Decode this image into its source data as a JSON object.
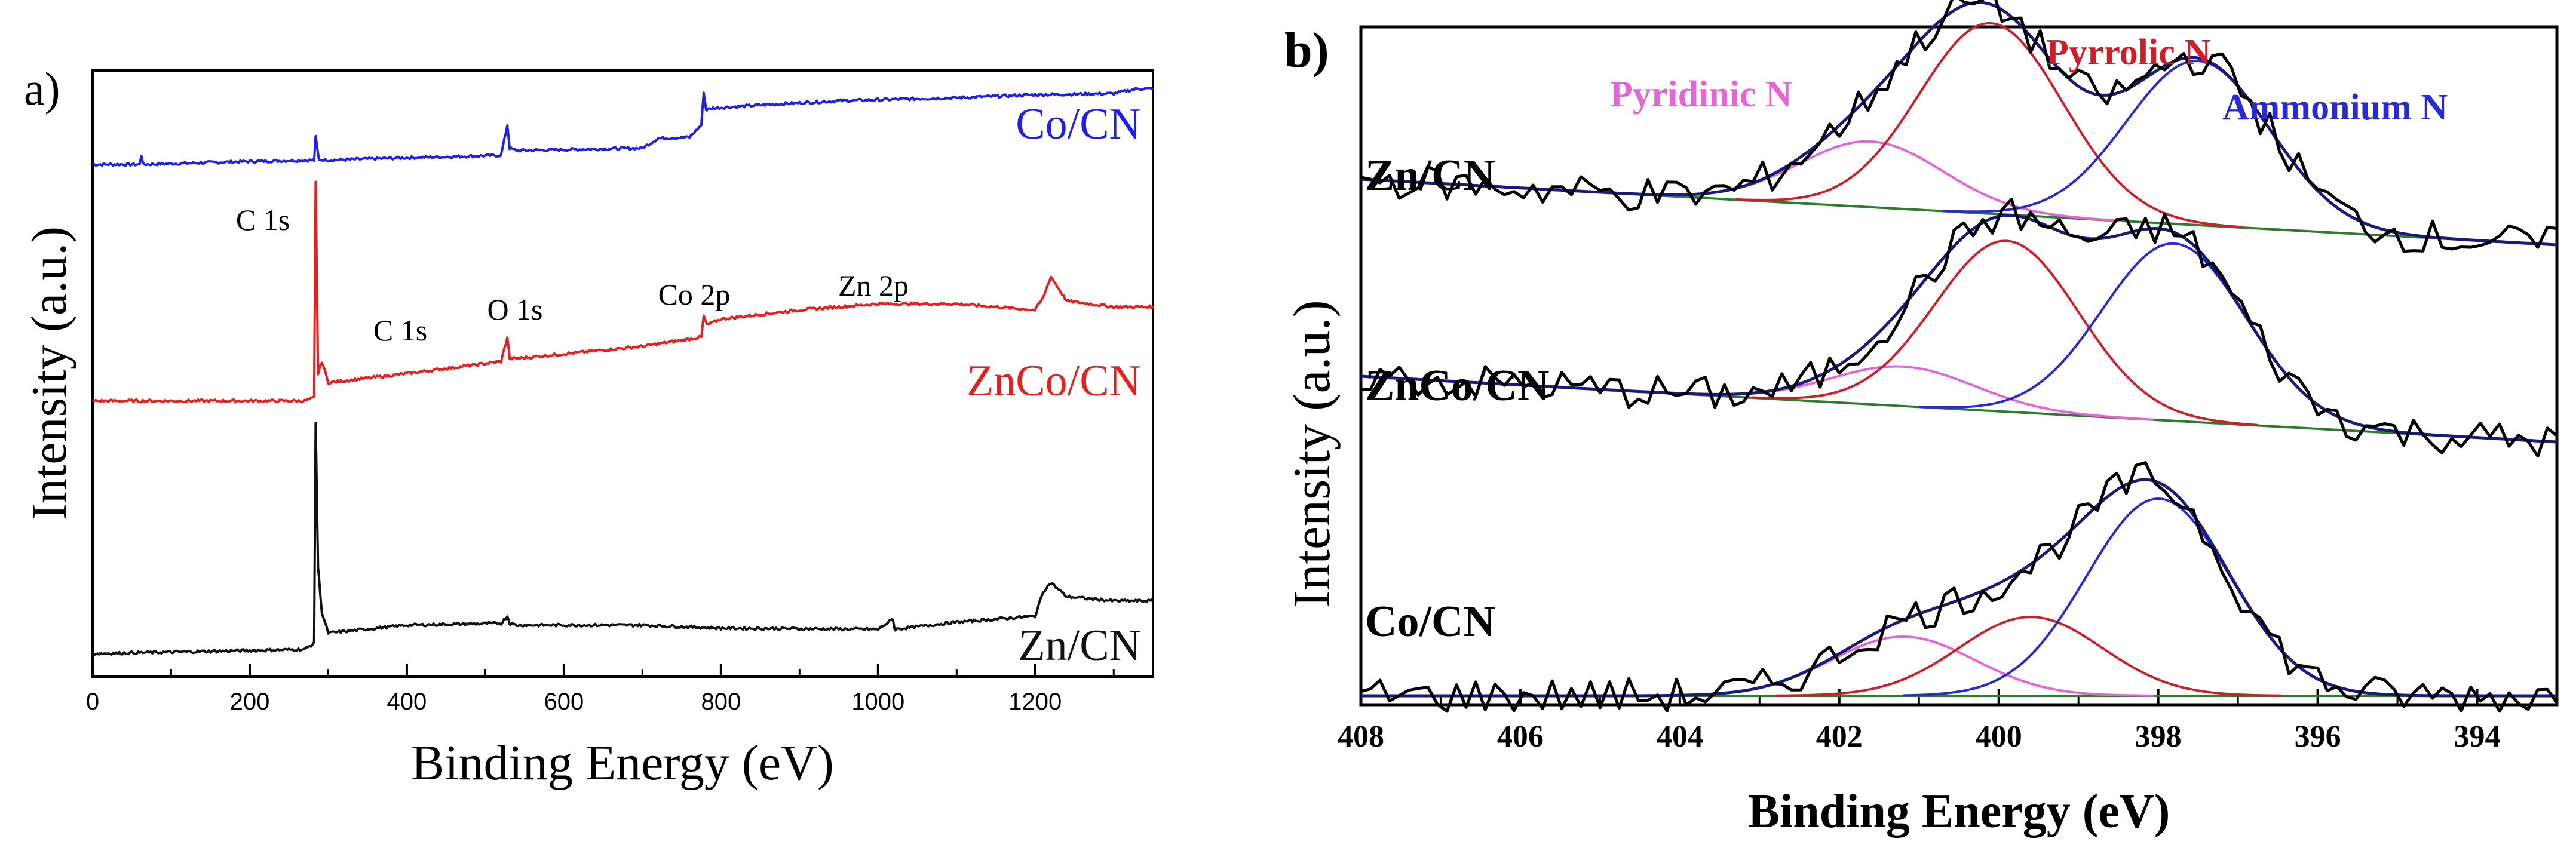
{
  "chart_data": [
    {
      "panel_label": "a)",
      "type": "line",
      "xlabel": "Binding Energy (eV)",
      "ylabel": "Intensity (a.u.)",
      "xlim": [
        0,
        1350
      ],
      "ylim": [
        0,
        100
      ],
      "xticks": [
        "0",
        "200",
        "400",
        "600",
        "800",
        "1000",
        "1200"
      ],
      "xtick_values": [
        0,
        200,
        400,
        600,
        800,
        1000,
        1200
      ],
      "annotations": [
        {
          "text": "C 1s",
          "x": 285,
          "y": 80
        },
        {
          "text": "C 1s",
          "x": 395,
          "y": 58
        },
        {
          "text": "O 1s",
          "x": 530,
          "y": 61
        },
        {
          "text": "Co 2p",
          "x": 760,
          "y": 64
        },
        {
          "text": "Zn 2p",
          "x": 965,
          "y": 65
        }
      ],
      "series": [
        {
          "name": "Co/CN",
          "color": "#1f1fe6",
          "x": [
            0,
            60,
            62,
            65,
            200,
            282,
            284,
            288,
            300,
            400,
            520,
            528,
            531,
            540,
            700,
            720,
            760,
            775,
            778,
            781,
            790,
            850,
            950,
            1100,
            1200,
            1300,
            1330,
            1350
          ],
          "y": [
            84.5,
            84.5,
            86,
            84.5,
            85,
            85.2,
            89,
            85.3,
            85.2,
            85.6,
            86,
            91,
            87.2,
            86.8,
            87.2,
            88.8,
            89,
            91,
            96.5,
            93.5,
            93.8,
            94.3,
            95,
            95.5,
            96,
            96.2,
            97,
            97
          ]
        },
        {
          "name": "ZnCo/CN",
          "color": "#e61f1f",
          "x": [
            0,
            270,
            282,
            284,
            287,
            292,
            300,
            400,
            520,
            528,
            531,
            540,
            700,
            775,
            778,
            782,
            800,
            900,
            1000,
            1100,
            1200,
            1210,
            1220,
            1240,
            1300,
            1350
          ],
          "y": [
            45.5,
            45.5,
            46,
            81.5,
            50,
            52,
            48.5,
            50,
            52,
            56,
            52.5,
            52.5,
            54.5,
            56,
            59.5,
            58,
            59,
            60.5,
            61.5,
            61.5,
            60.5,
            62.5,
            66,
            62,
            61,
            61
          ]
        },
        {
          "name": "Zn/CN",
          "color": "#111111",
          "x": [
            0,
            270,
            282,
            284,
            287,
            292,
            300,
            400,
            520,
            528,
            531,
            540,
            700,
            800,
            1000,
            1019,
            1021,
            1100,
            1200,
            1210,
            1220,
            1240,
            1300,
            1350
          ],
          "y": [
            3.8,
            4.5,
            5.5,
            42,
            18,
            10.5,
            7.2,
            8.5,
            8.8,
            10,
            8.8,
            8.5,
            8.5,
            8,
            7.8,
            9.5,
            7.8,
            9,
            10,
            14,
            15.5,
            13.2,
            12.5,
            12.5
          ]
        }
      ]
    },
    {
      "panel_label": "b)",
      "type": "line",
      "xlabel": "Binding Energy (eV)",
      "ylabel": "Intensity (a.u.)",
      "xlim": [
        408,
        393
      ],
      "xticks": [
        "408",
        "406",
        "404",
        "402",
        "400",
        "398",
        "396",
        "394"
      ],
      "xtick_values": [
        408,
        406,
        404,
        402,
        400,
        398,
        396,
        394
      ],
      "components": [
        {
          "name": "Pyridinic N",
          "color": "#e466d6"
        },
        {
          "name": "Pyrrolic N",
          "color": "#cc1f2a"
        },
        {
          "name": "Ammonium N",
          "color": "#2a2ad1"
        }
      ],
      "series": [
        {
          "name": "Zn/CN",
          "baseline": [
            10,
            0
          ],
          "peaks": [
            {
              "component": "Pyridinic N",
              "center": 401.6,
              "height": 10
            },
            {
              "component": "Pyrrolic N",
              "center": 400.1,
              "height": 29
            },
            {
              "component": "Ammonium N",
              "center": 397.5,
              "height": 25
            }
          ]
        },
        {
          "name": "ZnCo/CN",
          "baseline": [
            10,
            0
          ],
          "peaks": [
            {
              "component": "Pyridinic N",
              "center": 401.2,
              "height": 6
            },
            {
              "component": "Pyrrolic N",
              "center": 399.9,
              "height": 26
            },
            {
              "component": "Ammonium N",
              "center": 397.8,
              "height": 27
            }
          ]
        },
        {
          "name": "Co/CN",
          "baseline": [
            0,
            0
          ],
          "peaks": [
            {
              "component": "Pyridinic N",
              "center": 401.2,
              "height": 9
            },
            {
              "component": "Pyrrolic N",
              "center": 399.6,
              "height": 12
            },
            {
              "component": "Ammonium N",
              "center": 398.0,
              "height": 30
            }
          ]
        }
      ]
    }
  ],
  "labels": {
    "a_C1s_main": "C 1s",
    "a_C1s_small": "C 1s",
    "a_O1s": "O 1s",
    "a_Co2p": "Co 2p",
    "a_Zn2p": "Zn 2p"
  }
}
